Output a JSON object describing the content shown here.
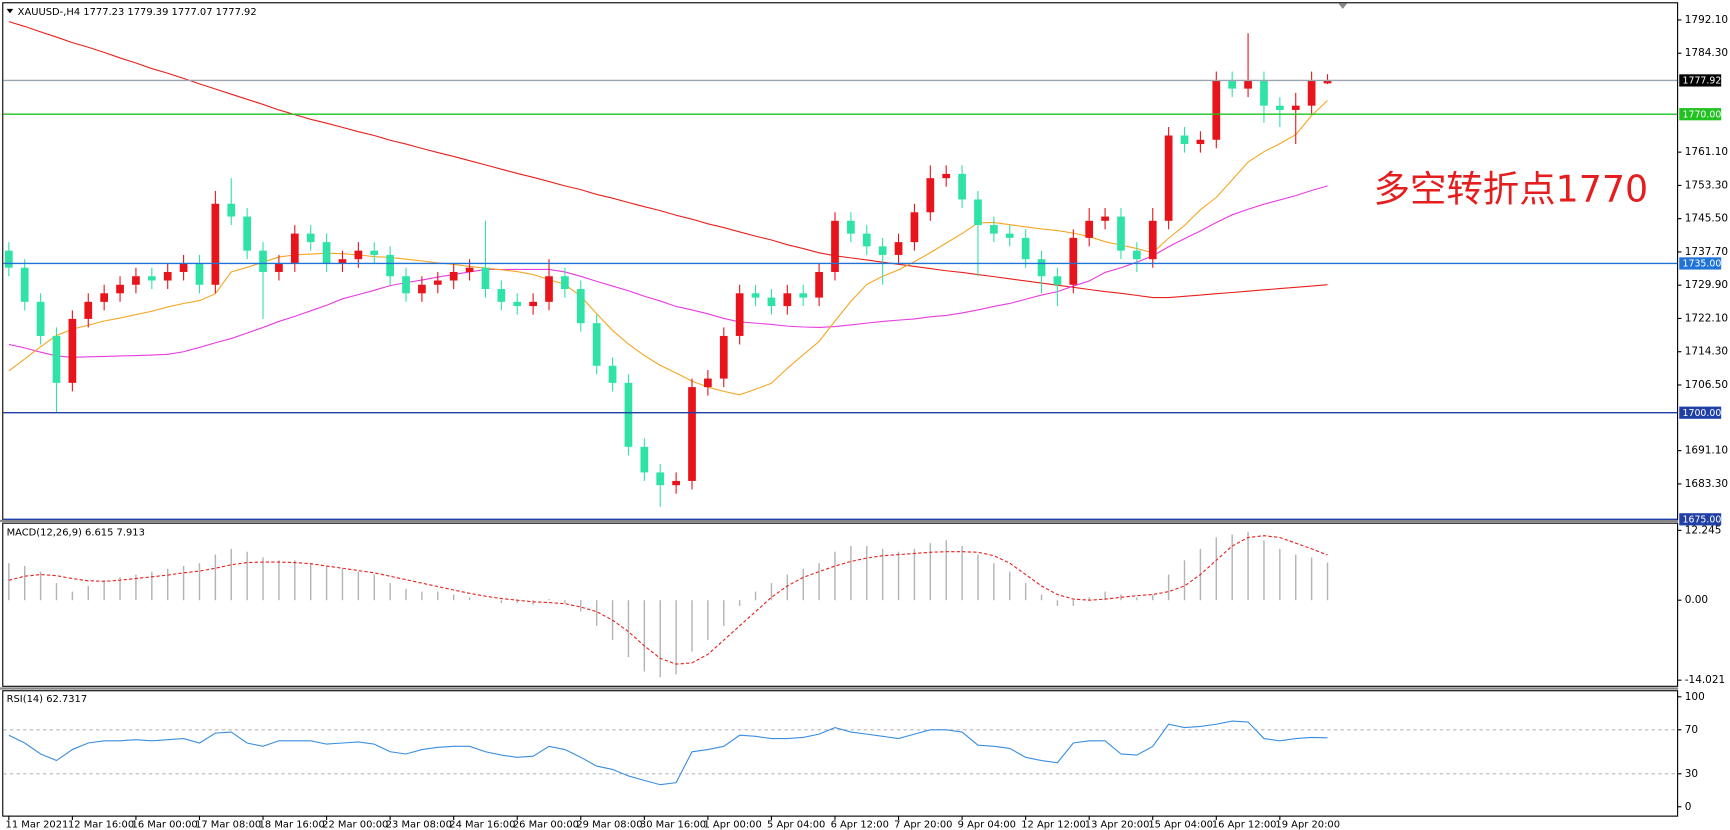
{
  "chart_data": [
    {
      "type": "candlestick",
      "title": "XAUUSD-,H4  1777.23 1779.39 1777.07 1777.92",
      "categories": [
        "11 Mar 2021",
        null,
        null,
        null,
        "12 Mar 16:00",
        null,
        null,
        null,
        "16 Mar 00:00",
        null,
        null,
        null,
        "17 Mar 08:00",
        null,
        null,
        null,
        "18 Mar 16:00",
        null,
        null,
        null,
        "22 Mar 00:00",
        null,
        null,
        null,
        "23 Mar 08:00",
        null,
        null,
        null,
        "24 Mar 16:00",
        null,
        null,
        null,
        "26 Mar 00:00",
        null,
        null,
        null,
        "29 Mar 08:00",
        null,
        null,
        null,
        "30 Mar 16:00",
        null,
        null,
        null,
        "1 Apr 00:00",
        null,
        null,
        null,
        "5 Apr 04:00",
        null,
        null,
        null,
        "6 Apr 12:00",
        null,
        null,
        null,
        "7 Apr 20:00",
        null,
        null,
        null,
        "9 Apr 04:00",
        null,
        null,
        null,
        "12 Apr 12:00",
        null,
        null,
        null,
        "13 Apr 20:00",
        null,
        null,
        null,
        "15 Apr 04:00",
        null,
        null,
        null,
        "16 Apr 12:00",
        null,
        null,
        null,
        "19 Apr 20:00",
        null,
        null,
        null
      ],
      "open": [
        1738,
        1734,
        1726,
        1718,
        1707,
        1722,
        1726,
        1728,
        1730,
        1732,
        1731,
        1733,
        1735,
        1730,
        1749,
        1746,
        1738,
        1733,
        1735,
        1742,
        1740,
        1735,
        1736,
        1738,
        1737,
        1732,
        1728,
        1730,
        1731,
        1733,
        1734,
        1729,
        1726,
        1725,
        1726,
        1732,
        1729,
        1721,
        1711,
        1707,
        1692,
        1686,
        1683,
        1684,
        1706,
        1708,
        1718,
        1728,
        1727,
        1725,
        1728,
        1727,
        1733,
        1745,
        1742,
        1739,
        1737,
        1740,
        1747,
        1755,
        1756,
        1750,
        1744,
        1742,
        1741,
        1736,
        1732,
        1730,
        1741,
        1745,
        1746,
        1738,
        1736,
        1745,
        1765,
        1763,
        1764,
        1778,
        1776,
        1778,
        1772,
        1771,
        1772,
        1777.23
      ],
      "high": [
        1740,
        1736,
        1728,
        1720,
        1724,
        1728,
        1730,
        1732,
        1734,
        1734,
        1735,
        1737,
        1737,
        1752,
        1755,
        1748,
        1740,
        1737,
        1744,
        1744,
        1742,
        1738,
        1740,
        1740,
        1739,
        1734,
        1732,
        1733,
        1735,
        1736,
        1745,
        1731,
        1728,
        1728,
        1736,
        1734,
        1731,
        1723,
        1713,
        1709,
        1694,
        1688,
        1686,
        1708,
        1710,
        1720,
        1730,
        1730,
        1729,
        1730,
        1730,
        1735,
        1747,
        1747,
        1744,
        1741,
        1742,
        1749,
        1758,
        1758,
        1758,
        1752,
        1746,
        1744,
        1743,
        1738,
        1734,
        1743,
        1748,
        1748,
        1748,
        1740,
        1748,
        1767,
        1767,
        1766,
        1780,
        1780,
        1789,
        1780,
        1774,
        1775,
        1780,
        1779.39
      ],
      "low": [
        1732,
        1724,
        1716,
        1700,
        1705,
        1720,
        1724,
        1726,
        1728,
        1729,
        1729,
        1731,
        1728,
        1728,
        1744,
        1736,
        1722,
        1731,
        1733,
        1738,
        1733,
        1733,
        1734,
        1735,
        1730,
        1726,
        1726,
        1728,
        1729,
        1731,
        1727,
        1724,
        1723,
        1723,
        1724,
        1727,
        1719,
        1709,
        1705,
        1690,
        1684,
        1678,
        1681,
        1682,
        1704,
        1706,
        1716,
        1725,
        1723,
        1723,
        1725,
        1725,
        1731,
        1740,
        1737,
        1730,
        1735,
        1738,
        1745,
        1753,
        1748,
        1732,
        1740,
        1739,
        1734,
        1728,
        1725,
        1728,
        1739,
        1743,
        1736,
        1733,
        1734,
        1743,
        1761,
        1761,
        1762,
        1774,
        1774,
        1768,
        1767,
        1763,
        1770,
        1777.07
      ],
      "close": [
        1734,
        1726,
        1718,
        1707,
        1722,
        1726,
        1728,
        1730,
        1732,
        1731,
        1733,
        1735,
        1730,
        1749,
        1746,
        1738,
        1733,
        1735,
        1742,
        1740,
        1735,
        1736,
        1738,
        1737,
        1732,
        1728,
        1730,
        1731,
        1733,
        1734,
        1729,
        1726,
        1725,
        1726,
        1732,
        1729,
        1721,
        1711,
        1707,
        1692,
        1686,
        1683,
        1684,
        1706,
        1708,
        1718,
        1728,
        1727,
        1725,
        1728,
        1727,
        1733,
        1745,
        1742,
        1739,
        1737,
        1740,
        1747,
        1755,
        1756,
        1750,
        1744,
        1742,
        1741,
        1736,
        1732,
        1730,
        1741,
        1745,
        1746,
        1738,
        1736,
        1745,
        1765,
        1763,
        1764,
        1778,
        1776,
        1778,
        1772,
        1771,
        1772,
        1778,
        1777.92
      ],
      "up_color": "#e8141c",
      "down_color": "#2fe3a6",
      "lines": [
        {
          "color": "#e8201c",
          "values": [
            1791.7,
            1790.6,
            1789.3,
            1788.1,
            1786.8,
            1785.7,
            1784.5,
            1783.2,
            1782.0,
            1780.7,
            1779.6,
            1778.4,
            1777.1,
            1775.9,
            1774.7,
            1773.5,
            1772.3,
            1771.0,
            1769.9,
            1768.8,
            1767.9,
            1766.9,
            1765.9,
            1765.0,
            1763.9,
            1763.0,
            1762.0,
            1761.0,
            1760.1,
            1759.1,
            1758.1,
            1757.1,
            1756.1,
            1755.2,
            1754.2,
            1753.2,
            1752.3,
            1751.2,
            1750.3,
            1749.3,
            1748.3,
            1747.4,
            1746.3,
            1745.4,
            1744.3,
            1743.4,
            1742.4,
            1741.4,
            1740.5,
            1739.4,
            1738.5,
            1737.5,
            1736.8,
            1736.3,
            1735.8,
            1735.3,
            1734.8,
            1734.3,
            1733.8,
            1733.3,
            1732.9,
            1732.4,
            1731.9,
            1731.4,
            1730.9,
            1730.4,
            1729.9,
            1729.4,
            1728.9,
            1728.4,
            1728.0,
            1727.5,
            1727.0,
            1727.0,
            1727.3,
            1727.6,
            1727.9,
            1728.2,
            1728.5,
            1728.8,
            1729.1,
            1729.4,
            1729.7,
            1730.0
          ]
        },
        {
          "color": "#e83ce0",
          "values": [
            1716,
            1715.2,
            1714.2,
            1713.3,
            1713.0,
            1713.1,
            1713.2,
            1713.3,
            1713.4,
            1713.5,
            1713.7,
            1714.3,
            1715.3,
            1716.4,
            1717.4,
            1718.7,
            1720.0,
            1721.4,
            1722.6,
            1723.9,
            1725.2,
            1726.7,
            1727.7,
            1728.7,
            1729.8,
            1730.5,
            1731.1,
            1731.8,
            1732.4,
            1733.0,
            1733.6,
            1733.6,
            1733.6,
            1733.6,
            1733.6,
            1733.0,
            1732.0,
            1730.8,
            1729.7,
            1728.6,
            1727.3,
            1726.2,
            1724.9,
            1724.1,
            1723.2,
            1722.1,
            1721.3,
            1721.0,
            1720.7,
            1720.3,
            1720.1,
            1720.0,
            1720.2,
            1720.6,
            1721.0,
            1721.4,
            1721.7,
            1722.0,
            1722.5,
            1722.8,
            1723.4,
            1724.1,
            1724.9,
            1725.6,
            1726.6,
            1727.6,
            1728.4,
            1729.7,
            1730.9,
            1732.9,
            1734.0,
            1735.3,
            1736.8,
            1738.9,
            1740.8,
            1742.6,
            1744.6,
            1746.4,
            1747.7,
            1748.9,
            1749.9,
            1750.9,
            1752.1,
            1753.2
          ]
        },
        {
          "color": "#f5a623",
          "values": [
            1709.8,
            1712.6,
            1715.5,
            1718.1,
            1719.6,
            1720.5,
            1721.5,
            1722.2,
            1723.0,
            1723.8,
            1724.8,
            1725.6,
            1726.3,
            1727.9,
            1733.0,
            1734.1,
            1735.3,
            1736.5,
            1737.0,
            1737.2,
            1737.4,
            1737.3,
            1737.0,
            1736.6,
            1736.4,
            1736.0,
            1735.6,
            1735.1,
            1734.8,
            1734.3,
            1733.9,
            1733.5,
            1733.1,
            1732.4,
            1731.2,
            1730.1,
            1727.3,
            1723.2,
            1719.3,
            1716.1,
            1713.4,
            1711.1,
            1709.3,
            1707.4,
            1706.0,
            1705.0,
            1704.2,
            1705.5,
            1706.9,
            1710.4,
            1713.6,
            1716.7,
            1721.5,
            1726.1,
            1730.1,
            1732.0,
            1733.5,
            1735.4,
            1737.5,
            1739.8,
            1742.0,
            1744.5,
            1744.6,
            1744.1,
            1743.6,
            1743.1,
            1742.7,
            1742.1,
            1741.3,
            1740.1,
            1739.3,
            1738.5,
            1737.5,
            1740.9,
            1743.9,
            1747.6,
            1750.5,
            1754.6,
            1758.8,
            1761.2,
            1763.1,
            1765.2,
            1769.7,
            1773.2
          ]
        }
      ],
      "levels": [
        {
          "value": 1777.92,
          "label": "1777.92",
          "color": "#9aa4ae",
          "label_background": "#000000"
        },
        {
          "value": 1770,
          "label": "1770.00",
          "color": "#1fc21f",
          "label_background": "#1fc21f"
        },
        {
          "value": 1735,
          "label": "1735.00",
          "color": "#1f73d6",
          "label_background": "#1f73d6"
        },
        {
          "value": 1700,
          "label": "1700.00",
          "color": "#1f3fa6",
          "label_background": "#1f3fa6"
        },
        {
          "value": 1675,
          "label": "1675.00",
          "color": "#1f3fa6",
          "label_background": "#1f3fa6"
        }
      ],
      "annotation": {
        "text": "多空转折点1770",
        "color": "#e41e1e"
      },
      "ylim": [
        1675,
        1796
      ],
      "yticks": [
        {
          "value": 1792.1,
          "label": "1792.10"
        },
        {
          "value": 1784.3,
          "label": "1784.30"
        },
        {
          "value": 1761.1,
          "label": "1761.10"
        },
        {
          "value": 1753.3,
          "label": "1753.30"
        },
        {
          "value": 1745.5,
          "label": "1745.50"
        },
        {
          "value": 1737.7,
          "label": "1737.70"
        },
        {
          "value": 1729.9,
          "label": "1729.90"
        },
        {
          "value": 1722.1,
          "label": "1722.10"
        },
        {
          "value": 1714.3,
          "label": "1714.30"
        },
        {
          "value": 1706.5,
          "label": "1706.50"
        },
        {
          "value": 1691.1,
          "label": "1691.10"
        },
        {
          "value": 1683.3,
          "label": "1683.30"
        }
      ]
    },
    {
      "type": "macd",
      "title": "MACD(12,26,9) 6.615 7.913",
      "histogram": {
        "color": "#b4b4b4",
        "values": [
          6.5,
          6.0,
          5.0,
          3.0,
          1.5,
          2.5,
          3.5,
          4.0,
          4.5,
          5.0,
          5.5,
          6.0,
          6.5,
          8.0,
          9.0,
          8.5,
          7.5,
          7.0,
          7.0,
          6.5,
          6.0,
          5.5,
          5.0,
          4.5,
          3.0,
          2.0,
          1.5,
          1.5,
          1.0,
          0.5,
          0.0,
          -0.5,
          -0.5,
          -0.8,
          0.2,
          -0.5,
          -2.0,
          -4.5,
          -7.0,
          -10.0,
          -12.5,
          -13.5,
          -13.0,
          -9.0,
          -7.0,
          -4.5,
          -1.0,
          1.5,
          3.0,
          4.5,
          5.5,
          6.5,
          8.5,
          9.5,
          9.5,
          9.0,
          8.5,
          9.0,
          10.0,
          10.5,
          9.5,
          8.0,
          6.5,
          5.0,
          3.0,
          1.0,
          -1.0,
          -1.0,
          0.5,
          1.5,
          1.0,
          0.5,
          1.0,
          4.5,
          7.0,
          9.0,
          11.0,
          11.5,
          12.0,
          10.5,
          9.0,
          8.0,
          7.5,
          6.615
        ]
      },
      "signal": {
        "color": "#e8201c",
        "values": [
          3.5,
          4.2,
          4.5,
          4.3,
          3.8,
          3.4,
          3.3,
          3.5,
          3.8,
          4.1,
          4.4,
          4.8,
          5.1,
          5.6,
          6.2,
          6.6,
          6.7,
          6.7,
          6.6,
          6.4,
          6.0,
          5.6,
          5.2,
          4.8,
          4.2,
          3.6,
          3.0,
          2.4,
          1.8,
          1.2,
          0.7,
          0.3,
          0.0,
          -0.3,
          -0.4,
          -0.6,
          -1.2,
          -2.0,
          -3.5,
          -5.5,
          -8.0,
          -10.2,
          -11.2,
          -11.0,
          -9.5,
          -7.0,
          -4.5,
          -2.0,
          0.5,
          2.5,
          4.0,
          5.0,
          6.0,
          6.8,
          7.4,
          7.8,
          8.0,
          8.2,
          8.4,
          8.5,
          8.5,
          8.4,
          7.8,
          6.5,
          4.5,
          2.5,
          1.0,
          0.2,
          0.0,
          0.2,
          0.5,
          0.8,
          1.0,
          1.5,
          2.5,
          4.5,
          7.0,
          9.5,
          11.0,
          11.3,
          11.0,
          10.0,
          9.0,
          7.913
        ]
      },
      "ylim": [
        -15,
        13.6
      ],
      "yticks": [
        12.245,
        {
          "value": 0,
          "label": "0.00"
        },
        -14.021
      ]
    },
    {
      "type": "rsi",
      "title": "RSI(14) 62.7317",
      "color": "#3a8ee0",
      "values": [
        65,
        58,
        48,
        42,
        52,
        58,
        60,
        60,
        61,
        60,
        61,
        62,
        58,
        67,
        68,
        58,
        55,
        60,
        60,
        60,
        57,
        58,
        59,
        57,
        50,
        48,
        52,
        54,
        55,
        55,
        50,
        47,
        45,
        46,
        55,
        52,
        45,
        37,
        34,
        28,
        24,
        20,
        22,
        50,
        52,
        55,
        65,
        64,
        62,
        62,
        63,
        66,
        72,
        68,
        66,
        64,
        62,
        66,
        70,
        70,
        68,
        56,
        55,
        53,
        45,
        42,
        40,
        58,
        60,
        60,
        48,
        47,
        55,
        75,
        72,
        73,
        75,
        78,
        77,
        62,
        60,
        62,
        63,
        62.7317
      ],
      "levels": [
        70,
        30
      ],
      "ylim": [
        -8,
        106
      ],
      "yticks": [
        100,
        70,
        30,
        0
      ]
    }
  ]
}
